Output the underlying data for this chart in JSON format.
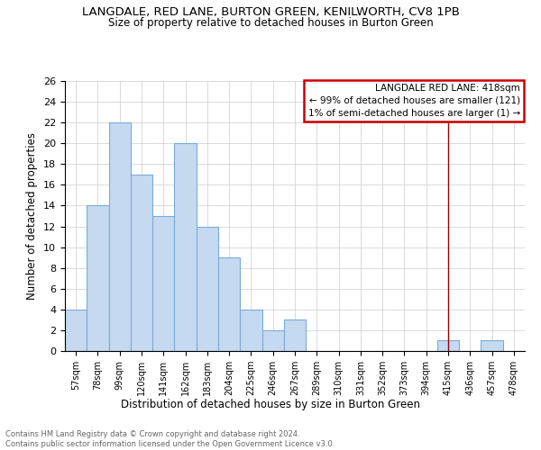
{
  "title": "LANGDALE, RED LANE, BURTON GREEN, KENILWORTH, CV8 1PB",
  "subtitle": "Size of property relative to detached houses in Burton Green",
  "xlabel": "Distribution of detached houses by size in Burton Green",
  "ylabel": "Number of detached properties",
  "footer_line1": "Contains HM Land Registry data © Crown copyright and database right 2024.",
  "footer_line2": "Contains public sector information licensed under the Open Government Licence v3.0.",
  "categories": [
    "57sqm",
    "78sqm",
    "99sqm",
    "120sqm",
    "141sqm",
    "162sqm",
    "183sqm",
    "204sqm",
    "225sqm",
    "246sqm",
    "267sqm",
    "289sqm",
    "310sqm",
    "331sqm",
    "352sqm",
    "373sqm",
    "394sqm",
    "415sqm",
    "436sqm",
    "457sqm",
    "478sqm"
  ],
  "values": [
    4,
    14,
    22,
    17,
    13,
    20,
    12,
    9,
    4,
    2,
    3,
    0,
    0,
    0,
    0,
    0,
    0,
    1,
    0,
    1,
    0
  ],
  "ylim": [
    0,
    26
  ],
  "yticks": [
    0,
    2,
    4,
    6,
    8,
    10,
    12,
    14,
    16,
    18,
    20,
    22,
    24,
    26
  ],
  "bar_color": "#c5d9f0",
  "bar_edge_color": "#7aabdb",
  "vline_x_index": 17,
  "vline_color": "#990000",
  "legend_title": "LANGDALE RED LANE: 418sqm",
  "legend_line1": "← 99% of detached houses are smaller (121)",
  "legend_line2": "1% of semi-detached houses are larger (1) →",
  "legend_box_color": "#cc0000",
  "background_color": "#ffffff",
  "grid_color": "#cccccc"
}
